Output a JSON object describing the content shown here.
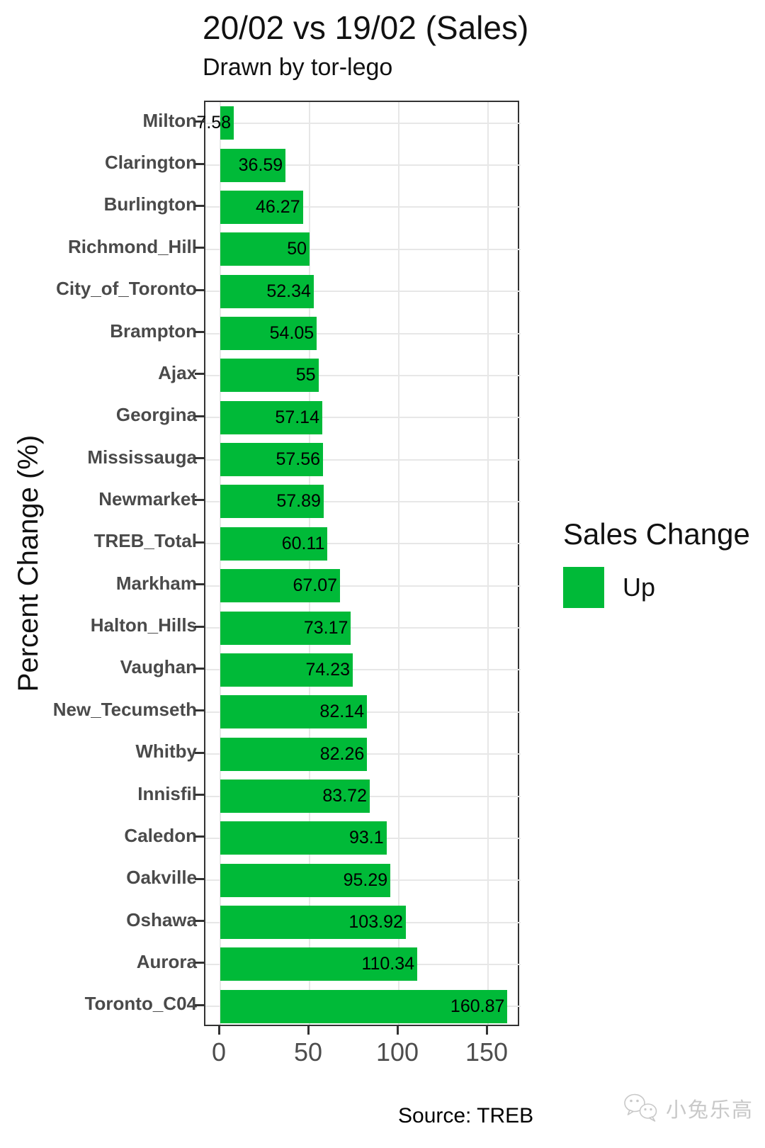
{
  "title": "20/02 vs 19/02 (Sales)",
  "subtitle": "Drawn by tor-lego",
  "ylabel": "Percent Change (%)",
  "source": "Source: TREB",
  "watermark": {
    "icon": "wechat-icon",
    "text": "小兔乐高"
  },
  "legend": {
    "title": "Sales Change",
    "items": [
      {
        "label": "Up",
        "color": "#00BA38"
      }
    ]
  },
  "colors": {
    "bar": "#00BA38",
    "grid": "#e7e7e7",
    "panel_border": "#333333",
    "axis_text": "#4d4d4d",
    "category_text": "#4a4a4a",
    "value_text": "#000000",
    "watermark": "#c8c8c8"
  },
  "chart_data": {
    "type": "bar",
    "orientation": "horizontal",
    "title": "20/02 vs 19/02 (Sales)",
    "subtitle": "Drawn by tor-lego",
    "xlabel": "",
    "ylabel": "Percent Change (%)",
    "legend_position": "right",
    "series_name": "Up",
    "grid": "major-only",
    "x_ticks": [
      0,
      50,
      100,
      150
    ],
    "xlim": [
      -8.4,
      168.9
    ],
    "categories": [
      "Milton",
      "Clarington",
      "Burlington",
      "Richmond_Hill",
      "City_of_Toronto",
      "Brampton",
      "Ajax",
      "Georgina",
      "Mississauga",
      "Newmarket",
      "TREB_Total",
      "Markham",
      "Halton_Hills",
      "Vaughan",
      "New_Tecumseth",
      "Whitby",
      "Innisfil",
      "Caledon",
      "Oakville",
      "Oshawa",
      "Aurora",
      "Toronto_C04"
    ],
    "values": [
      7.58,
      36.59,
      46.27,
      50,
      52.34,
      54.05,
      55,
      57.14,
      57.56,
      57.89,
      60.11,
      67.07,
      73.17,
      74.23,
      82.14,
      82.26,
      83.72,
      93.1,
      95.29,
      103.92,
      110.34,
      160.87
    ]
  }
}
